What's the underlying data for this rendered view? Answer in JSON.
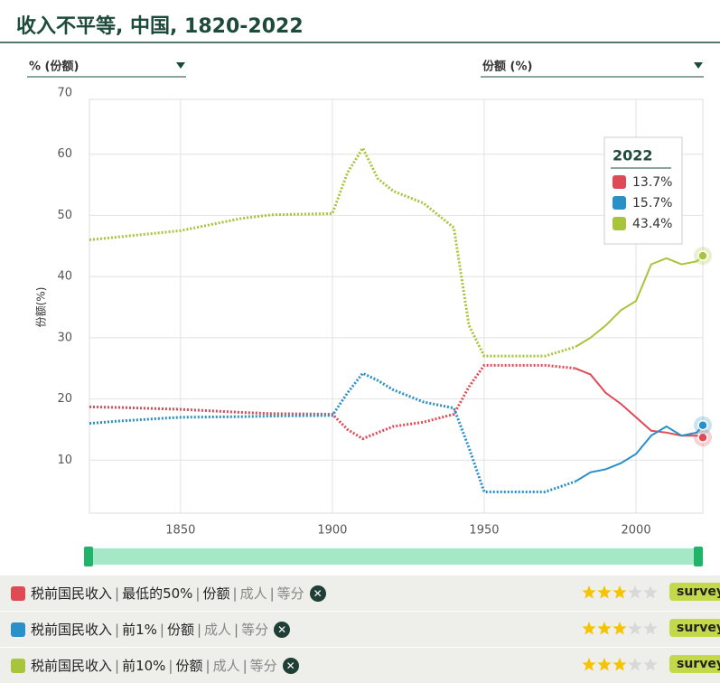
{
  "chart_data": {
    "type": "line",
    "title": "收入不平等, 中国, 1820-2022",
    "ylabel": "份额(%)",
    "unit_selector": "% (份额)",
    "measure_selector": "份额 (%)",
    "legend_title": "2022",
    "dotted_before": 1980,
    "x": [
      1820,
      1830,
      1850,
      1870,
      1880,
      1900,
      1905,
      1910,
      1915,
      1920,
      1930,
      1940,
      1945,
      1950,
      1960,
      1970,
      1980,
      1985,
      1990,
      1995,
      2000,
      2005,
      2010,
      2015,
      2020,
      2022
    ],
    "series": [
      {
        "name": "最低的50%",
        "color": "#e04a55",
        "values": [
          18.7,
          18.6,
          18.3,
          17.8,
          17.6,
          17.5,
          15,
          13.5,
          14.5,
          15.5,
          16.2,
          17.5,
          22,
          25.5,
          25.5,
          25.5,
          25,
          24,
          21,
          19.2,
          17,
          14.8,
          14.5,
          14,
          14,
          13.7
        ],
        "value_labels": {
          "25": "13.7%"
        }
      },
      {
        "name": "前1%",
        "color": "#2a90c8",
        "values": [
          16,
          16.4,
          17,
          17.1,
          17.2,
          17.3,
          21,
          24.2,
          23,
          21.5,
          19.5,
          18.5,
          12,
          4.8,
          4.8,
          4.8,
          6.5,
          8,
          8.5,
          9.5,
          11,
          14,
          15.5,
          14,
          14.5,
          15.7
        ],
        "value_labels": {
          "25": "15.7%"
        }
      },
      {
        "name": "前10%",
        "color": "#a8c43a",
        "values": [
          46,
          46.5,
          47.5,
          49.5,
          50.1,
          50.3,
          57,
          61,
          56,
          54,
          52,
          48,
          32,
          27,
          27,
          27,
          28.5,
          30,
          32,
          34.5,
          36,
          42,
          43,
          42,
          42.5,
          43.4
        ],
        "value_labels": {
          "25": "43.4%"
        }
      }
    ],
    "xlim": [
      1820,
      2022
    ],
    "xticks": [
      1850,
      1900,
      1950,
      2000
    ],
    "ylim": [
      0,
      70
    ],
    "yticks": [
      10,
      20,
      30,
      40,
      50,
      60,
      70
    ],
    "grid": true
  },
  "rows": [
    {
      "indicator": "税前国民收入",
      "measure": "份额",
      "population": "成人",
      "grouping": "等分",
      "rating": 3,
      "rating_max": 5,
      "badge": "surveys"
    },
    {
      "indicator": "税前国民收入",
      "measure": "份额",
      "population": "成人",
      "grouping": "等分",
      "rating": 3,
      "rating_max": 5,
      "badge": "surveys"
    },
    {
      "indicator": "税前国民收入",
      "measure": "份额",
      "population": "成人",
      "grouping": "等分",
      "rating": 3,
      "rating_max": 5,
      "badge": "surveys"
    }
  ]
}
